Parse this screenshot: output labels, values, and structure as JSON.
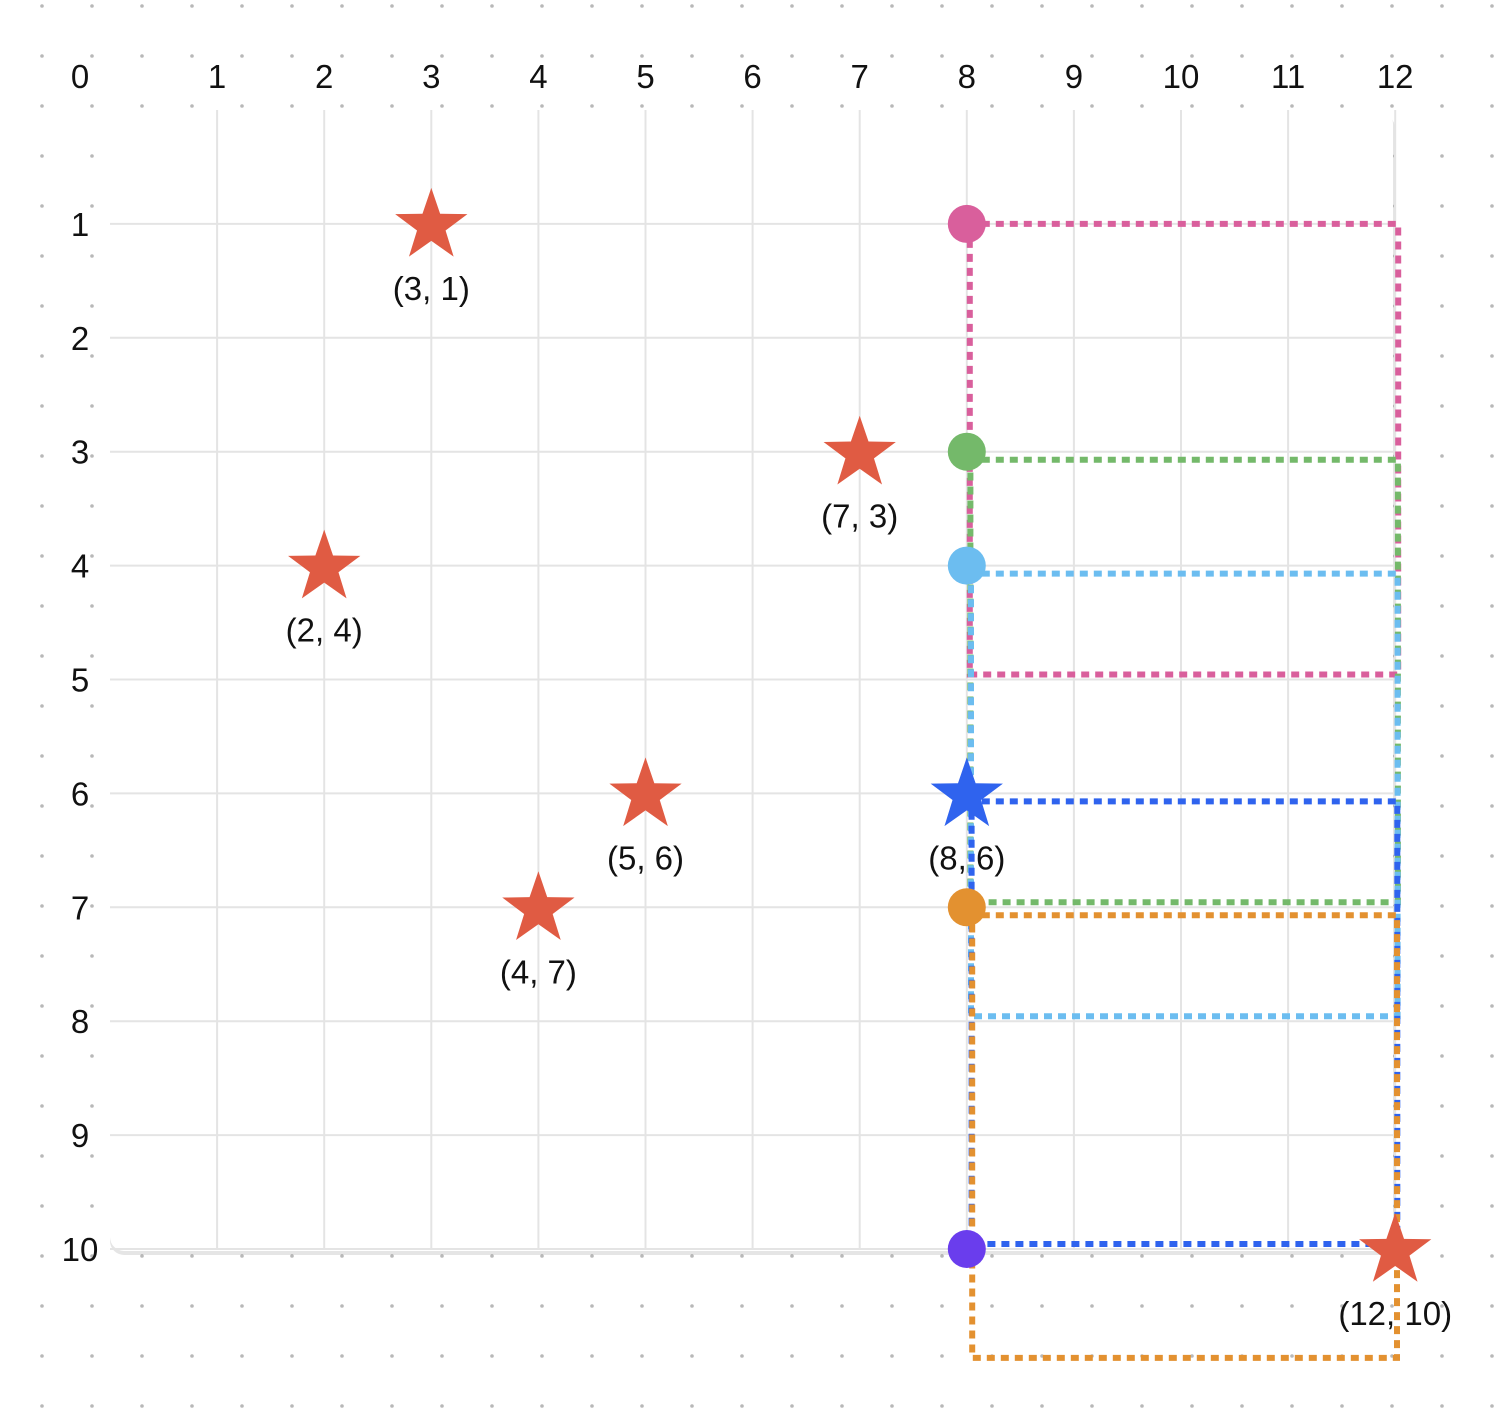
{
  "grid": {
    "x_ticks": [
      "0",
      "1",
      "2",
      "3",
      "4",
      "5",
      "6",
      "7",
      "8",
      "9",
      "10",
      "11",
      "12"
    ],
    "y_ticks": [
      "0",
      "1",
      "2",
      "3",
      "4",
      "5",
      "6",
      "7",
      "8",
      "9",
      "10"
    ]
  },
  "stars": [
    {
      "x": 3,
      "y": 1,
      "label": "(3, 1)",
      "color": "#e05b43"
    },
    {
      "x": 7,
      "y": 3,
      "label": "(7, 3)",
      "color": "#e05b43"
    },
    {
      "x": 2,
      "y": 4,
      "label": "(2, 4)",
      "color": "#e05b43"
    },
    {
      "x": 5,
      "y": 6,
      "label": "(5, 6)",
      "color": "#e05b43"
    },
    {
      "x": 8,
      "y": 6,
      "label": "(8, 6)",
      "color": "#2f63ee"
    },
    {
      "x": 4,
      "y": 7,
      "label": "(4, 7)",
      "color": "#e05b43"
    },
    {
      "x": 12,
      "y": 10,
      "label": "(12, 10)",
      "color": "#e05b43"
    }
  ],
  "markers": [
    {
      "x": 8,
      "y": 1,
      "color": "#d95f9c"
    },
    {
      "x": 8,
      "y": 3,
      "color": "#74b96a"
    },
    {
      "x": 8,
      "y": 4,
      "color": "#6cbdf0"
    },
    {
      "x": 8,
      "y": 7,
      "color": "#e39130"
    },
    {
      "x": 8,
      "y": 10,
      "color": "#6a3ded"
    }
  ],
  "paths": [
    {
      "color": "#d95f9c",
      "from": [
        8,
        1
      ],
      "to": [
        12,
        5
      ]
    },
    {
      "color": "#74b96a",
      "from": [
        8,
        3
      ],
      "to": [
        12,
        7
      ]
    },
    {
      "color": "#6cbdf0",
      "from": [
        8,
        4
      ],
      "to": [
        12,
        8
      ]
    },
    {
      "color": "#2f63ee",
      "from": [
        8,
        6
      ],
      "to": [
        12,
        10
      ]
    },
    {
      "color": "#e39130",
      "from": [
        8,
        7
      ],
      "to": [
        12,
        11
      ]
    }
  ]
}
